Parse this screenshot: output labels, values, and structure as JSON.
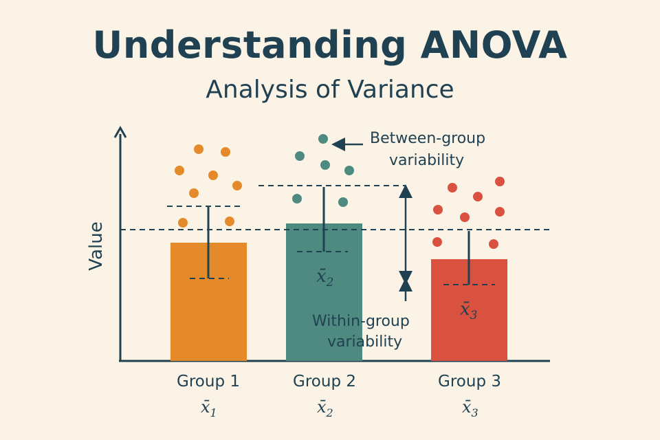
{
  "title": "Understanding ANOVA",
  "subtitle": "Analysis of Variance",
  "colors": {
    "background": "#fbf3e6",
    "ink": "#1f4152",
    "group1": "#e58a2a",
    "group2": "#4f8a80",
    "group3": "#d9513f"
  },
  "y_axis_label": "Value",
  "groups": [
    {
      "name": "Group 1",
      "mean_symbol": "x̄",
      "mean_subscript": "1",
      "color": "#e58a2a"
    },
    {
      "name": "Group 2",
      "mean_symbol": "x̄",
      "mean_subscript": "2",
      "color": "#4f8a80"
    },
    {
      "name": "Group 3",
      "mean_symbol": "x̄",
      "mean_subscript": "3",
      "color": "#d9513f"
    }
  ],
  "bar_means": [
    {
      "symbol": "x̄",
      "subscript": "2"
    },
    {
      "symbol": "x̄",
      "subscript": "3"
    }
  ],
  "annotations": {
    "between_line1": "Between-group",
    "between_line2": "variability",
    "within_line1": "Within-group",
    "within_line2": "variability"
  }
}
